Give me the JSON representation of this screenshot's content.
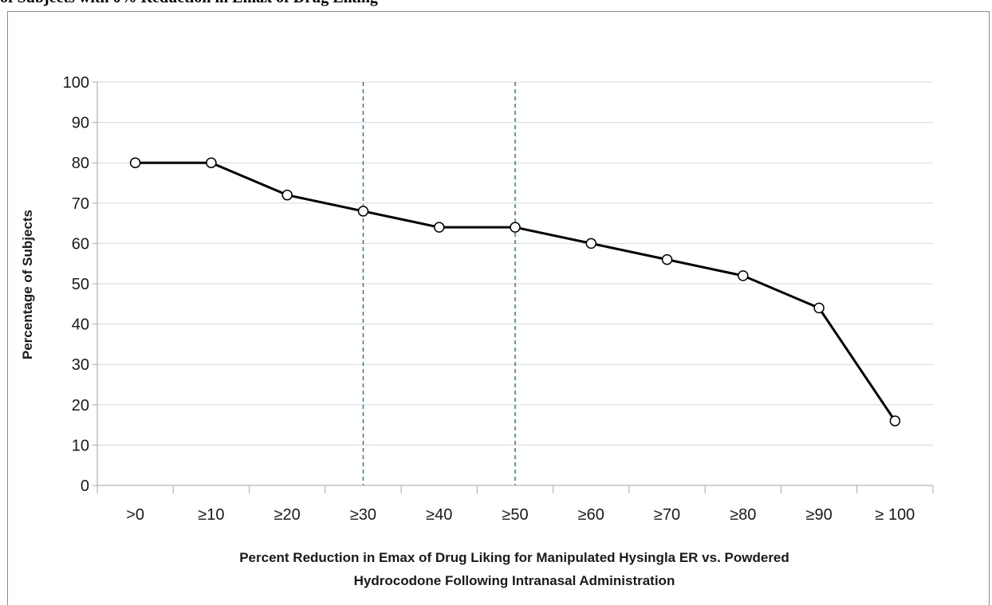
{
  "caption": "of Subjects with 0% Reduction in Emax of Drug Liking",
  "chart_data": {
    "type": "line",
    "categories": [
      ">0",
      "≥10",
      "≥20",
      "≥30",
      "≥40",
      "≥50",
      "≥60",
      "≥70",
      "≥80",
      "≥90",
      "≥ 100"
    ],
    "series": [
      {
        "values": [
          80,
          80,
          72,
          68,
          64,
          64,
          60,
          56,
          52,
          44,
          16
        ]
      }
    ],
    "title": "",
    "xlabel": "Percent Reduction in Emax of Drug Liking for Manipulated Hysingla ER vs. Powdered",
    "xlabel_line2": "Hydrocodone Following Intranasal Administration",
    "ylabel": "Percentage of Subjects",
    "ylim": [
      0,
      100
    ],
    "yticks": [
      0,
      10,
      20,
      30,
      40,
      50,
      60,
      70,
      80,
      90,
      100
    ],
    "reference_lines_at_categories": [
      "≥30",
      "≥50"
    ],
    "grid": "horizontal",
    "colors": {
      "line": "#000000",
      "marker_fill": "#ffffff",
      "reference_line": "#2e75b6",
      "grid": "#d9d9d9",
      "axis": "#a6a6a6"
    }
  }
}
